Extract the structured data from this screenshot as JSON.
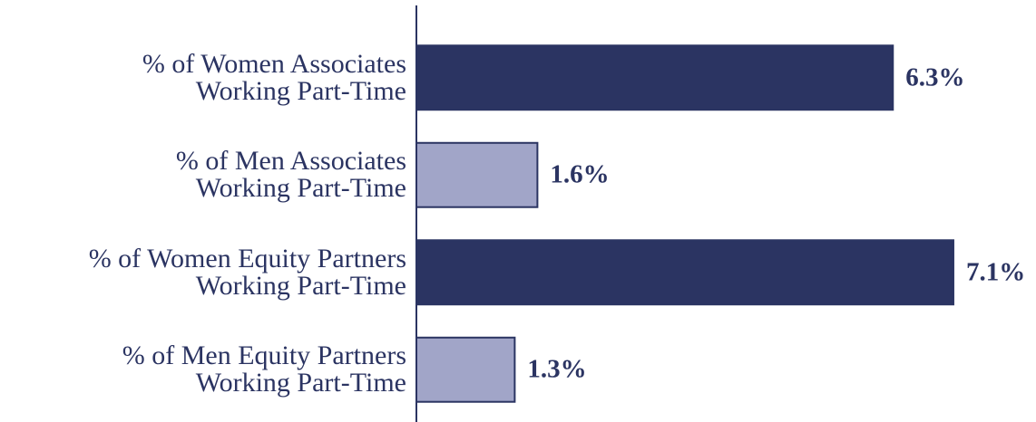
{
  "chart_data": {
    "type": "bar",
    "orientation": "horizontal",
    "categories": [
      "% of Women Associates\nWorking Part-Time",
      "% of Men Associates\nWorking Part-Time",
      "% of Women Equity Partners\nWorking Part-Time",
      "% of Men Equity Partners\nWorking Part-Time"
    ],
    "values": [
      6.3,
      1.6,
      7.1,
      1.3
    ],
    "value_labels": [
      "6.3%",
      "1.6%",
      "7.1%",
      "1.3%"
    ],
    "colors": [
      "#2b3462",
      "#a1a5c8",
      "#2b3462",
      "#a1a5c8"
    ],
    "edge_color": "#2b3462",
    "xlim": [
      0,
      8
    ]
  }
}
